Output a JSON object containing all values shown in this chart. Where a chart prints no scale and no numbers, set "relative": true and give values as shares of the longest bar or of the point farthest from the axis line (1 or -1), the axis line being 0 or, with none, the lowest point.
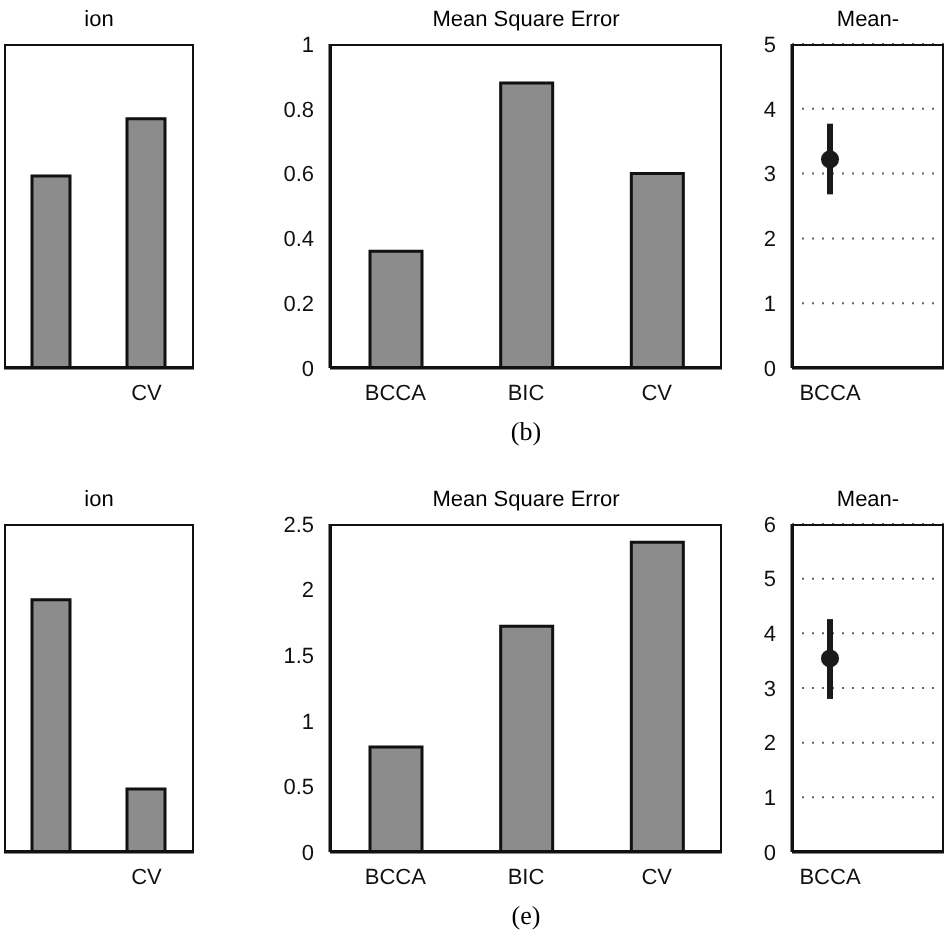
{
  "chart_data": [
    {
      "type": "bar",
      "title": "ion",
      "categories": [
        null,
        "CV"
      ],
      "relative": true,
      "values": [
        0.77,
        1
      ],
      "color": "#8c8c8c"
    },
    {
      "type": "bar",
      "title": "Mean Square Error",
      "categories": [
        "BCCA",
        "BIC",
        "CV"
      ],
      "values": [
        0.36,
        0.88,
        0.6
      ],
      "color": "#8c8c8c",
      "ylim": [
        0,
        1
      ],
      "yticks": [
        0,
        0.2,
        0.4,
        0.6,
        0.8,
        1
      ],
      "annotations": [
        "(b)"
      ]
    },
    {
      "type": "scatter",
      "title": "Mean-",
      "categories": [
        "BCCA",
        null
      ],
      "values": [
        3.22,
        null
      ],
      "errors": [
        [
          2.68,
          3.77
        ],
        null
      ],
      "color": "#1a1a1a",
      "marker": "circle",
      "ylim": [
        0,
        5
      ],
      "yticks": [
        0,
        1,
        2,
        3,
        4,
        5
      ],
      "grid": "y"
    },
    {
      "type": "bar",
      "title": "ion",
      "categories": [
        null,
        "CV"
      ],
      "relative": true,
      "values": [
        1,
        0.25
      ],
      "color": "#8c8c8c"
    },
    {
      "type": "bar",
      "title": "Mean Square Error",
      "categories": [
        "BCCA",
        "BIC",
        "CV"
      ],
      "values": [
        0.8,
        1.72,
        2.36
      ],
      "color": "#8c8c8c",
      "ylim": [
        0,
        2.5
      ],
      "yticks": [
        0,
        0.5,
        1,
        1.5,
        2,
        2.5
      ],
      "annotations": [
        "(e)"
      ]
    },
    {
      "type": "scatter",
      "title": "Mean-",
      "categories": [
        "BCCA",
        null
      ],
      "values": [
        3.54,
        null
      ],
      "errors": [
        [
          2.8,
          4.26
        ],
        null
      ],
      "color": "#1a1a1a",
      "marker": "circle",
      "ylim": [
        0,
        6
      ],
      "yticks": [
        0,
        1,
        2,
        3,
        4,
        5,
        6
      ],
      "grid": "y"
    }
  ]
}
